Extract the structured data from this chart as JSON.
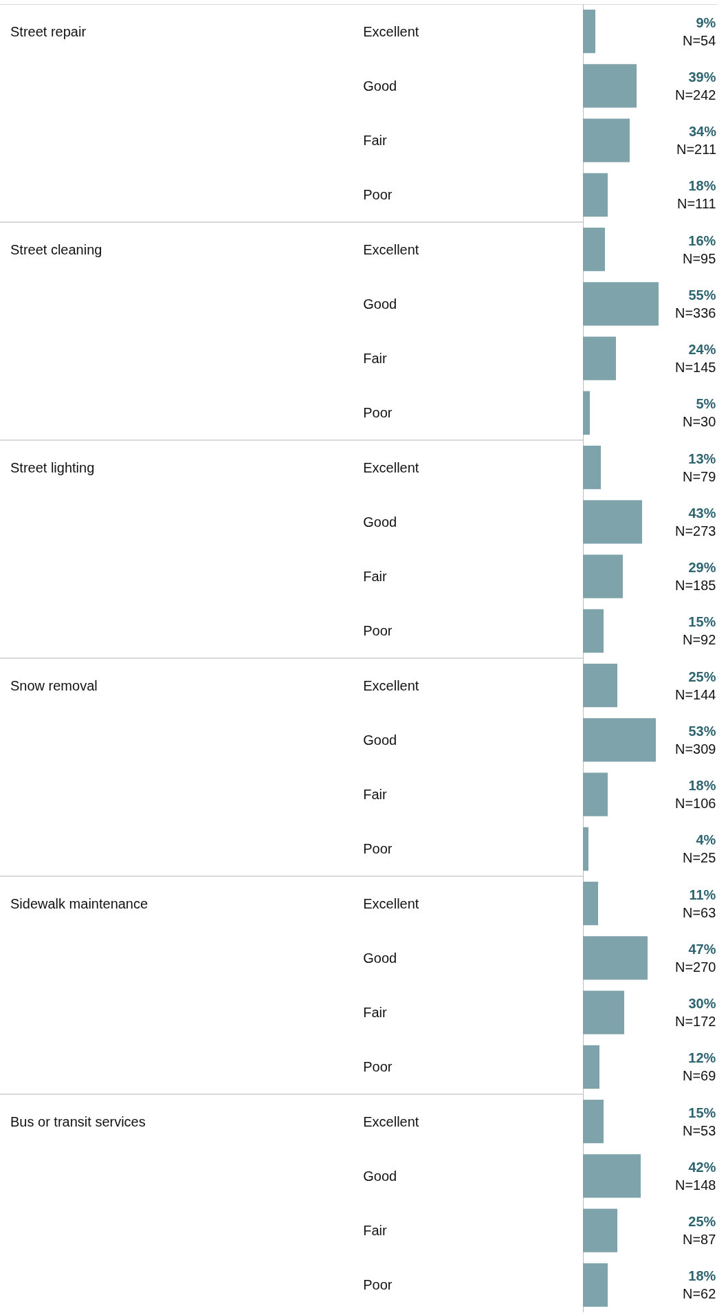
{
  "chart_data": {
    "type": "bar",
    "orientation": "horizontal",
    "color": "#7fa3aa",
    "annotations": [
      "Street repair",
      "Street cleaning",
      "Street lighting",
      "Snow removal",
      "Sidewalk maintenance",
      "Bus or transit services"
    ],
    "categories": [
      "Excellent",
      "Good",
      "Fair",
      "Poor",
      "Excellent",
      "Good",
      "Fair",
      "Poor",
      "Excellent",
      "Good",
      "Fair",
      "Poor",
      "Excellent",
      "Good",
      "Fair",
      "Poor",
      "Excellent",
      "Good",
      "Fair",
      "Poor",
      "Excellent",
      "Good",
      "Fair",
      "Poor"
    ],
    "values": [
      9,
      39,
      34,
      18,
      16,
      55,
      24,
      5,
      13,
      43,
      29,
      15,
      25,
      53,
      18,
      4,
      11,
      47,
      30,
      12,
      15,
      42,
      25,
      18
    ],
    "value_labels": [
      "9%\nN=54",
      "39%\nN=242",
      "34%\nN=211",
      "18%\nN=111",
      "16%\nN=95",
      "55%\nN=336",
      "24%\nN=145",
      "5%\nN=30",
      "13%\nN=79",
      "43%\nN=273",
      "29%\nN=185",
      "15%\nN=92",
      "25%\nN=144",
      "53%\nN=309",
      "18%\nN=106",
      "4%\nN=25",
      "11%\nN=63",
      "47%\nN=270",
      "30%\nN=172",
      "12%\nN=69",
      "15%\nN=53",
      "42%\nN=148",
      "25%\nN=87",
      "18%\nN=62"
    ]
  }
}
